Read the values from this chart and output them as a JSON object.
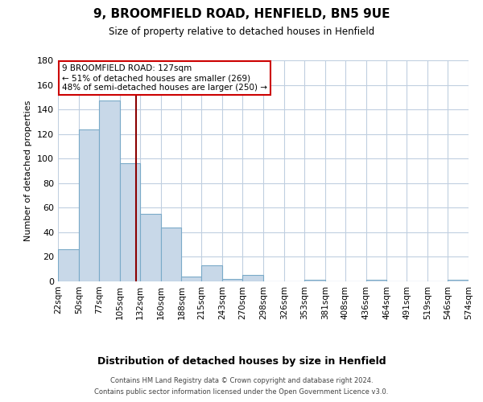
{
  "title": "9, BROOMFIELD ROAD, HENFIELD, BN5 9UE",
  "subtitle": "Size of property relative to detached houses in Henfield",
  "xlabel": "Distribution of detached houses by size in Henfield",
  "ylabel": "Number of detached properties",
  "bin_edges": [
    22,
    50,
    77,
    105,
    132,
    160,
    188,
    215,
    243,
    270,
    298,
    326,
    353,
    381,
    408,
    436,
    464,
    491,
    519,
    546,
    574
  ],
  "bar_heights": [
    26,
    124,
    147,
    96,
    55,
    44,
    4,
    13,
    2,
    5,
    0,
    0,
    1,
    0,
    0,
    1,
    0,
    0,
    0,
    1
  ],
  "bar_color": "#c8d8e8",
  "bar_edgecolor": "#7aaac8",
  "vline_x": 127,
  "vline_color": "#8b0000",
  "ylim": [
    0,
    180
  ],
  "yticks": [
    0,
    20,
    40,
    60,
    80,
    100,
    120,
    140,
    160,
    180
  ],
  "annotation_title": "9 BROOMFIELD ROAD: 127sqm",
  "annotation_line1": "← 51% of detached houses are smaller (269)",
  "annotation_line2": "48% of semi-detached houses are larger (250) →",
  "annotation_box_color": "#ffffff",
  "annotation_box_edgecolor": "#cc0000",
  "footer_line1": "Contains HM Land Registry data © Crown copyright and database right 2024.",
  "footer_line2": "Contains public sector information licensed under the Open Government Licence v3.0.",
  "background_color": "#ffffff",
  "grid_color": "#c0cfe0"
}
